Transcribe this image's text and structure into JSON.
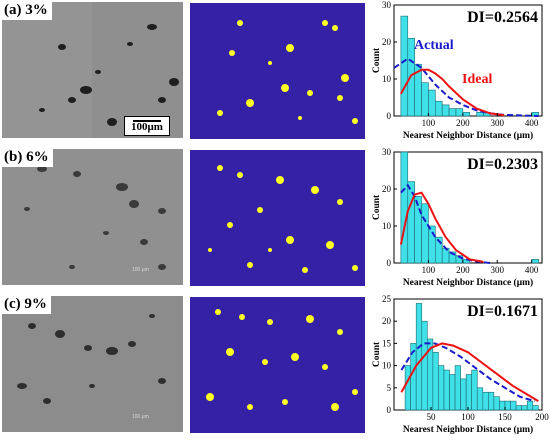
{
  "panels": [
    {
      "label": "(a) 3%",
      "scale_label": "100μm",
      "scale_faint": ""
    },
    {
      "label": "(b) 6%",
      "scale_label": "",
      "scale_faint": "100 μm"
    },
    {
      "label": "(c) 9%",
      "scale_label": "",
      "scale_faint": "100 μm"
    }
  ],
  "colors": {
    "bar": "#40e0e8",
    "actual": "#1a1acc",
    "ideal": "#ee1111",
    "segment_bg": "#3521a6",
    "segment_fg": "#ffff22"
  },
  "chart_data": [
    {
      "type": "bar",
      "title": "DI=0.2564",
      "xlabel": "Nearest Neighbor Distance (μm)",
      "ylabel": "Count",
      "xlim": [
        0,
        430
      ],
      "ylim": [
        0,
        30
      ],
      "xticks": [
        100,
        200,
        300,
        400
      ],
      "yticks": [
        0,
        10,
        20,
        30
      ],
      "bin_width": 20,
      "bin_start": [
        20,
        40,
        60,
        80,
        100,
        120,
        140,
        160,
        180,
        200,
        220,
        240,
        260,
        280,
        300,
        320,
        340,
        360,
        380,
        400
      ],
      "values": [
        27,
        21,
        14,
        9,
        7,
        4,
        3,
        2,
        2,
        1,
        0,
        1,
        1,
        0,
        0,
        0,
        0,
        0,
        0,
        1
      ],
      "series": [
        {
          "name": "Actual",
          "style": "dashed",
          "x": [
            0,
            40,
            80,
            120,
            160,
            200,
            240,
            280,
            320,
            420
          ],
          "y": [
            13,
            15.5,
            13,
            8.5,
            5,
            3,
            1.5,
            0.7,
            0.3,
            0
          ]
        },
        {
          "name": "Ideal",
          "style": "solid",
          "x": [
            20,
            50,
            80,
            100,
            120,
            140,
            160,
            200,
            240,
            280,
            320
          ],
          "y": [
            6,
            11,
            12.5,
            12.5,
            11.5,
            10,
            8,
            4.5,
            2,
            0.7,
            0.2
          ]
        }
      ],
      "legend_text": [
        "Actual",
        "Ideal"
      ]
    },
    {
      "type": "bar",
      "title": "DI=0.2303",
      "xlabel": "Nearest Neighbor Distance (μm)",
      "ylabel": "Count",
      "xlim": [
        0,
        430
      ],
      "ylim": [
        0,
        30
      ],
      "xticks": [
        100,
        200,
        300,
        400
      ],
      "yticks": [
        0,
        10,
        20,
        30
      ],
      "bin_width": 20,
      "bin_start": [
        20,
        40,
        60,
        80,
        100,
        120,
        140,
        160,
        180,
        200,
        220,
        240,
        260,
        280,
        300,
        320,
        340,
        360,
        380,
        400
      ],
      "values": [
        30,
        22,
        18,
        16,
        10,
        7,
        4,
        3,
        2,
        1,
        0,
        0,
        0,
        0,
        0,
        0,
        0,
        0,
        0,
        1
      ],
      "series": [
        {
          "name": "Actual",
          "style": "dashed",
          "x": [
            20,
            40,
            60,
            80,
            120,
            160,
            200,
            240,
            280
          ],
          "y": [
            19,
            21,
            18,
            13,
            7,
            3,
            1.2,
            0.4,
            0
          ]
        },
        {
          "name": "Ideal",
          "style": "solid",
          "x": [
            20,
            40,
            60,
            80,
            100,
            120,
            150,
            180,
            220,
            260
          ],
          "y": [
            5,
            14,
            18.5,
            19,
            16,
            12,
            7,
            3.5,
            1,
            0.3
          ]
        }
      ],
      "legend_text": []
    },
    {
      "type": "bar",
      "title": "DI=0.1671",
      "xlabel": "Nearest Neighbor Distance (μm)",
      "ylabel": "Count",
      "xlim": [
        0,
        200
      ],
      "ylim": [
        0,
        25
      ],
      "xticks": [
        50,
        100,
        150,
        200
      ],
      "yticks": [
        0,
        5,
        10,
        15,
        20,
        25
      ],
      "bin_width": 7.5,
      "bin_start": [
        15,
        22.5,
        30,
        37.5,
        45,
        52.5,
        60,
        67.5,
        75,
        82.5,
        90,
        97.5,
        105,
        112.5,
        120,
        127.5,
        135,
        142.5,
        150,
        157.5,
        165,
        172.5,
        180,
        187.5
      ],
      "values": [
        10,
        15,
        24,
        20,
        16,
        13,
        10,
        9,
        8,
        10,
        7,
        8,
        9,
        5,
        4,
        4,
        3,
        2,
        2,
        2,
        1,
        1,
        2,
        1
      ],
      "series": [
        {
          "name": "Actual",
          "style": "dashed",
          "x": [
            10,
            25,
            40,
            55,
            70,
            90,
            110,
            130,
            150,
            170,
            190
          ],
          "y": [
            9,
            13,
            15,
            15,
            14,
            12,
            9.5,
            7,
            5,
            3,
            2
          ]
        },
        {
          "name": "Ideal",
          "style": "solid",
          "x": [
            10,
            30,
            50,
            65,
            80,
            100,
            120,
            140,
            160,
            180,
            195
          ],
          "y": [
            4,
            10,
            14,
            15,
            14.5,
            13,
            10.5,
            8,
            5.5,
            3.5,
            2
          ]
        }
      ],
      "legend_text": []
    }
  ]
}
